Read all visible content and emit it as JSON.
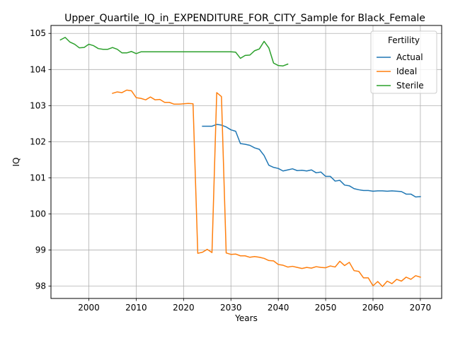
{
  "chart_data": {
    "type": "line",
    "title": "Upper_Quartile_IQ_in_EXPENDITURE_FOR_CITY_Sample for Black_Female",
    "xlabel": "Years",
    "ylabel": "IQ",
    "xlim": [
      1992,
      2074.5
    ],
    "ylim": [
      97.66,
      105.22
    ],
    "xticks": [
      2000,
      2010,
      2020,
      2030,
      2040,
      2050,
      2060,
      2070
    ],
    "xtick_labels": [
      "2000",
      "2010",
      "2020",
      "2030",
      "2040",
      "2050",
      "2060",
      "2070"
    ],
    "yticks": [
      98,
      99,
      100,
      101,
      102,
      103,
      104,
      105
    ],
    "ytick_labels": [
      "98",
      "99",
      "100",
      "101",
      "102",
      "103",
      "104",
      "105"
    ],
    "grid": true,
    "legend": {
      "title": "Fertility",
      "placement": "upper right"
    },
    "series": [
      {
        "name": "Actual",
        "color": "#1f77b4",
        "x": [
          2024,
          2025,
          2026,
          2027,
          2028,
          2029,
          2030,
          2031,
          2032,
          2033,
          2034,
          2035,
          2036,
          2037,
          2038,
          2039,
          2040,
          2041,
          2042,
          2043,
          2044,
          2045,
          2046,
          2047,
          2048,
          2049,
          2050,
          2051,
          2052,
          2053,
          2054,
          2055,
          2056,
          2057,
          2058,
          2059,
          2060,
          2061,
          2062,
          2063,
          2064,
          2065,
          2066,
          2067,
          2068,
          2069,
          2070
        ],
        "values": [
          102.43,
          102.43,
          102.43,
          102.48,
          102.46,
          102.41,
          102.33,
          102.29,
          101.95,
          101.93,
          101.9,
          101.83,
          101.79,
          101.62,
          101.35,
          101.29,
          101.26,
          101.19,
          101.22,
          101.25,
          101.2,
          101.21,
          101.19,
          101.22,
          101.14,
          101.16,
          101.04,
          101.04,
          100.91,
          100.93,
          100.8,
          100.78,
          100.7,
          100.67,
          100.65,
          100.65,
          100.63,
          100.64,
          100.64,
          100.63,
          100.64,
          100.63,
          100.62,
          100.55,
          100.55,
          100.47,
          100.48
        ]
      },
      {
        "name": "Ideal",
        "color": "#ff7f0e",
        "x": [
          2005,
          2006,
          2007,
          2008,
          2009,
          2010,
          2011,
          2012,
          2013,
          2014,
          2015,
          2016,
          2017,
          2018,
          2019,
          2020,
          2021,
          2022,
          2023,
          2024,
          2025,
          2026,
          2027,
          2028,
          2029,
          2030,
          2031,
          2032,
          2033,
          2034,
          2035,
          2036,
          2037,
          2038,
          2039,
          2040,
          2041,
          2042,
          2043,
          2044,
          2045,
          2046,
          2047,
          2048,
          2049,
          2050,
          2051,
          2052,
          2053,
          2054,
          2055,
          2056,
          2057,
          2058,
          2059,
          2060,
          2061,
          2062,
          2063,
          2064,
          2065,
          2066,
          2067,
          2068,
          2069,
          2070
        ],
        "values": [
          103.34,
          103.38,
          103.36,
          103.43,
          103.41,
          103.22,
          103.2,
          103.16,
          103.24,
          103.16,
          103.17,
          103.09,
          103.09,
          103.04,
          103.04,
          103.05,
          103.06,
          103.05,
          98.91,
          98.94,
          99.02,
          98.93,
          103.36,
          103.25,
          98.92,
          98.88,
          98.89,
          98.84,
          98.84,
          98.8,
          98.82,
          98.8,
          98.77,
          98.71,
          98.7,
          98.6,
          98.58,
          98.53,
          98.55,
          98.52,
          98.49,
          98.52,
          98.5,
          98.54,
          98.52,
          98.51,
          98.56,
          98.53,
          98.69,
          98.57,
          98.66,
          98.43,
          98.41,
          98.23,
          98.23,
          98.01,
          98.13,
          97.99,
          98.14,
          98.07,
          98.19,
          98.14,
          98.25,
          98.19,
          98.29,
          98.25
        ]
      },
      {
        "name": "Sterile",
        "color": "#2ca02c",
        "x": [
          1994,
          1995,
          1996,
          1997,
          1998,
          1999,
          2000,
          2001,
          2002,
          2003,
          2004,
          2005,
          2006,
          2007,
          2008,
          2009,
          2010,
          2011,
          2012,
          2013,
          2014,
          2015,
          2016,
          2017,
          2018,
          2019,
          2020,
          2021,
          2022,
          2023,
          2024,
          2025,
          2026,
          2027,
          2028,
          2029,
          2030,
          2031,
          2032,
          2033,
          2034,
          2035,
          2036,
          2037,
          2038,
          2039,
          2040,
          2041,
          2042
        ],
        "values": [
          104.82,
          104.89,
          104.76,
          104.7,
          104.6,
          104.61,
          104.7,
          104.66,
          104.58,
          104.56,
          104.56,
          104.61,
          104.56,
          104.46,
          104.46,
          104.5,
          104.44,
          104.49,
          104.49,
          104.49,
          104.49,
          104.49,
          104.49,
          104.49,
          104.49,
          104.49,
          104.49,
          104.49,
          104.49,
          104.49,
          104.49,
          104.49,
          104.49,
          104.49,
          104.49,
          104.49,
          104.49,
          104.48,
          104.31,
          104.39,
          104.4,
          104.52,
          104.57,
          104.78,
          104.6,
          104.18,
          104.11,
          104.1,
          104.15
        ]
      }
    ]
  }
}
